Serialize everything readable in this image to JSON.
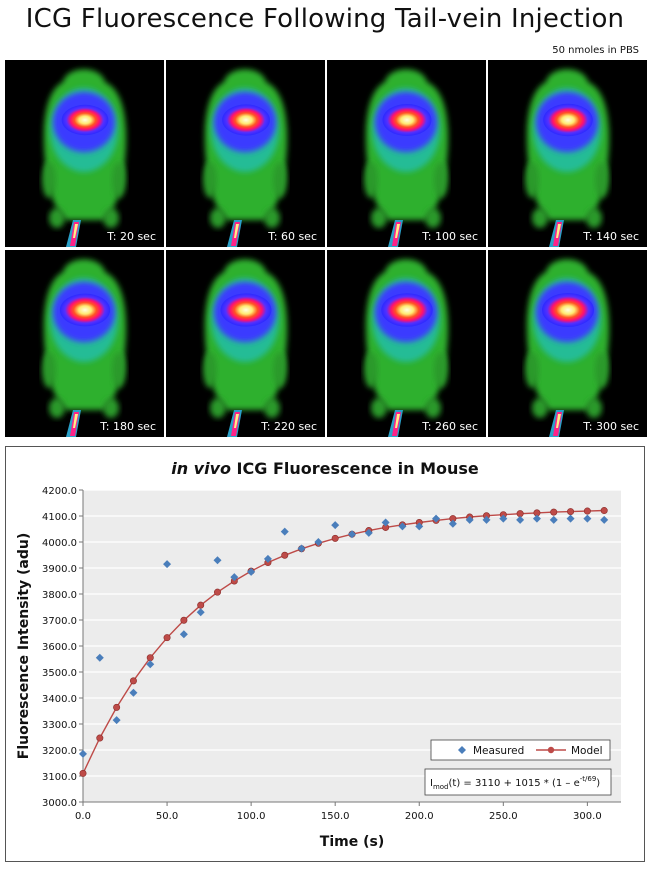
{
  "header": {
    "title": "ICG Fluorescence Following Tail-vein Injection",
    "dose_note": "50 nmoles in PBS"
  },
  "frames": [
    {
      "label": "T: 20 sec",
      "intensity": 0.55
    },
    {
      "label": "T: 60 sec",
      "intensity": 0.65
    },
    {
      "label": "T: 100 sec",
      "intensity": 0.75
    },
    {
      "label": "T: 140 sec",
      "intensity": 0.8
    },
    {
      "label": "T: 180 sec",
      "intensity": 0.85
    },
    {
      "label": "T: 220 sec",
      "intensity": 0.9
    },
    {
      "label": "T: 260 sec",
      "intensity": 0.95
    },
    {
      "label": "T: 300 sec",
      "intensity": 1.0
    }
  ],
  "colors": {
    "measured": "#4a7ebb",
    "model": "#be4b48",
    "plot_bg": "#ececec",
    "grid": "#ffffff"
  },
  "chart_data": {
    "type": "scatter",
    "title_italic": "in vivo",
    "title_rest": " ICG Fluorescence in Mouse",
    "xlabel": "Time (s)",
    "ylabel": "Fluorescence Intensity (adu)",
    "xlim": [
      0,
      320
    ],
    "ylim": [
      3000,
      4200
    ],
    "xticks": [
      0,
      50,
      100,
      150,
      200,
      250,
      300
    ],
    "xtick_labels": [
      "0.0",
      "50.0",
      "100.0",
      "150.0",
      "200.0",
      "250.0",
      "300.0"
    ],
    "yticks": [
      3000,
      3100,
      3200,
      3300,
      3400,
      3500,
      3600,
      3700,
      3800,
      3900,
      4000,
      4100,
      4200
    ],
    "ytick_labels": [
      "3000.0",
      "3100.0",
      "3200.0",
      "3300.0",
      "3400.0",
      "3500.0",
      "3600.0",
      "3700.0",
      "3800.0",
      "3900.0",
      "4000.0",
      "4100.0",
      "4200.0"
    ],
    "grid": true,
    "legend_position": "bottom-right",
    "series": [
      {
        "name": "Measured",
        "marker": "diamond",
        "x": [
          0,
          10,
          20,
          30,
          40,
          50,
          60,
          70,
          80,
          90,
          100,
          110,
          120,
          130,
          140,
          150,
          160,
          170,
          180,
          190,
          200,
          210,
          220,
          230,
          240,
          250,
          260,
          270,
          280,
          290,
          300,
          310
        ],
        "y": [
          3185,
          3555,
          3315,
          3420,
          3530,
          3915,
          3645,
          3730,
          3930,
          3865,
          3885,
          3935,
          4040,
          3975,
          4000,
          4065,
          4030,
          4035,
          4075,
          4060,
          4060,
          4090,
          4070,
          4085,
          4085,
          4090,
          4085,
          4090,
          4085,
          4090,
          4090,
          4085
        ]
      },
      {
        "name": "Model",
        "marker": "circle",
        "x": [
          0,
          10,
          20,
          30,
          40,
          50,
          60,
          70,
          80,
          90,
          100,
          110,
          120,
          130,
          140,
          150,
          160,
          170,
          180,
          190,
          200,
          210,
          220,
          230,
          240,
          250,
          260,
          270,
          280,
          290,
          300,
          310
        ],
        "y": [
          3110,
          3246,
          3364,
          3466,
          3555,
          3632,
          3699,
          3757,
          3807,
          3850,
          3888,
          3921,
          3949,
          3974,
          3995,
          4014,
          4030,
          4044,
          4056,
          4066,
          4075,
          4083,
          4090,
          4096,
          4101,
          4105,
          4109,
          4112,
          4115,
          4117,
          4119,
          4121
        ]
      }
    ],
    "annotation": {
      "prefix": "I",
      "subscript": "mod",
      "middle": "(t) = 3110 + 1015 * (1 – e",
      "superscript": "-t/69",
      "suffix": ")"
    }
  }
}
